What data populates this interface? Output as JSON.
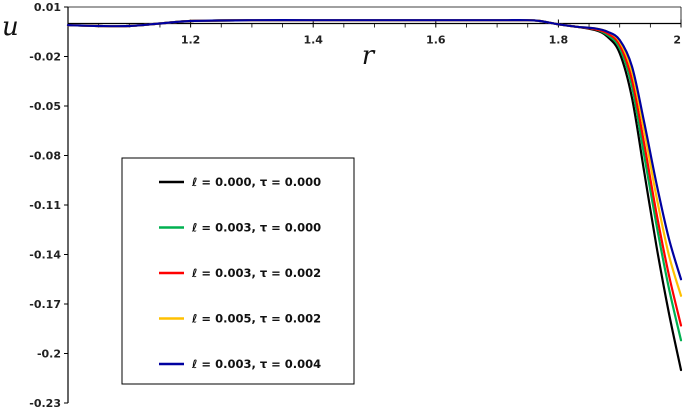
{
  "chart_data": {
    "type": "line",
    "xlabel": "r",
    "ylabel": "u",
    "xlim": [
      1.0,
      2.0
    ],
    "ylim": [
      -0.23,
      0.01
    ],
    "x_ticks": [
      1.2,
      1.4,
      1.6,
      1.8,
      2.0
    ],
    "x_tick_labels": [
      "1.2",
      "1.4",
      "1.6",
      "1.8",
      "2"
    ],
    "x_minor_ticks": [
      1.05,
      1.1,
      1.15,
      1.25,
      1.3,
      1.35,
      1.45,
      1.5,
      1.55,
      1.65,
      1.7,
      1.75,
      1.85,
      1.9,
      1.95
    ],
    "y_ticks": [
      0.01,
      -0.02,
      -0.05,
      -0.08,
      -0.11,
      -0.14,
      -0.17,
      -0.2,
      -0.23
    ],
    "y_tick_labels": [
      "0.01",
      "-0.02",
      "-0.05",
      "-0.08",
      "-0.11",
      "-0.14",
      "-0.17",
      "-0.2",
      "-0.23"
    ],
    "grid": false,
    "legend_position": "lower-left",
    "x": [
      1.0,
      1.05,
      1.1,
      1.15,
      1.2,
      1.3,
      1.4,
      1.5,
      1.6,
      1.7,
      1.75,
      1.77,
      1.8,
      1.83,
      1.86,
      1.88,
      1.9,
      1.92,
      1.94,
      1.96,
      1.98,
      2.0
    ],
    "series": [
      {
        "name": "ℓ = 0.000,  τ = 0.000",
        "color": "#000000",
        "values": [
          -0.001,
          -0.0015,
          -0.0015,
          0.0,
          0.0015,
          0.002,
          0.002,
          0.002,
          0.002,
          0.002,
          0.002,
          0.0015,
          -0.0005,
          -0.002,
          -0.004,
          -0.008,
          -0.018,
          -0.045,
          -0.09,
          -0.135,
          -0.175,
          -0.21
        ]
      },
      {
        "name": "ℓ = 0.003,  τ = 0.000",
        "color": "#00b050",
        "values": [
          -0.001,
          -0.0015,
          -0.0015,
          0.0,
          0.0015,
          0.002,
          0.002,
          0.002,
          0.002,
          0.002,
          0.002,
          0.0015,
          -0.0005,
          -0.002,
          -0.0035,
          -0.007,
          -0.015,
          -0.038,
          -0.08,
          -0.122,
          -0.16,
          -0.192
        ]
      },
      {
        "name": "ℓ = 0.003,  τ = 0.002",
        "color": "#ff0000",
        "values": [
          -0.001,
          -0.0015,
          -0.0015,
          0.0,
          0.0015,
          0.002,
          0.002,
          0.002,
          0.002,
          0.002,
          0.002,
          0.0015,
          -0.0005,
          -0.002,
          -0.0035,
          -0.006,
          -0.013,
          -0.034,
          -0.073,
          -0.115,
          -0.152,
          -0.183
        ]
      },
      {
        "name": "ℓ = 0.005,  τ = 0.002",
        "color": "#ffc000",
        "values": [
          -0.001,
          -0.0015,
          -0.0015,
          0.0,
          0.0015,
          0.002,
          0.002,
          0.002,
          0.002,
          0.002,
          0.002,
          0.0015,
          -0.0005,
          -0.002,
          -0.003,
          -0.005,
          -0.011,
          -0.029,
          -0.065,
          -0.105,
          -0.14,
          -0.165
        ]
      },
      {
        "name": "ℓ = 0.003,  τ = 0.004",
        "color": "#0000a0",
        "values": [
          -0.001,
          -0.0015,
          -0.0015,
          0.0,
          0.0015,
          0.002,
          0.002,
          0.002,
          0.002,
          0.002,
          0.002,
          0.0015,
          -0.0005,
          -0.002,
          -0.003,
          -0.005,
          -0.01,
          -0.026,
          -0.06,
          -0.097,
          -0.13,
          -0.155
        ]
      }
    ]
  }
}
